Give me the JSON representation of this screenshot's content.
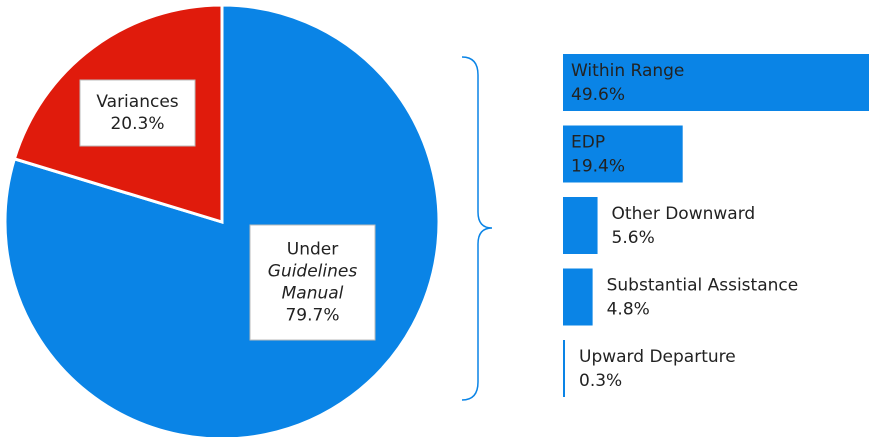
{
  "chart_data": [
    {
      "type": "pie",
      "categories": [
        "Under Guidelines Manual",
        "Variances"
      ],
      "values": [
        79.7,
        20.3
      ],
      "value_labels": [
        "79.7%",
        "20.3%"
      ],
      "colors": [
        "#0a84e6",
        "#e01b0c"
      ]
    },
    {
      "type": "hbar",
      "categories": [
        "Within Range",
        "EDP",
        "Other Downward",
        "Substantial Assistance",
        "Upward Departure"
      ],
      "values": [
        49.6,
        19.4,
        5.6,
        4.8,
        0.3
      ],
      "value_labels": [
        "49.6%",
        "19.4%",
        "5.6%",
        "4.8%",
        "0.3%"
      ],
      "color": "#0a84e6"
    }
  ]
}
